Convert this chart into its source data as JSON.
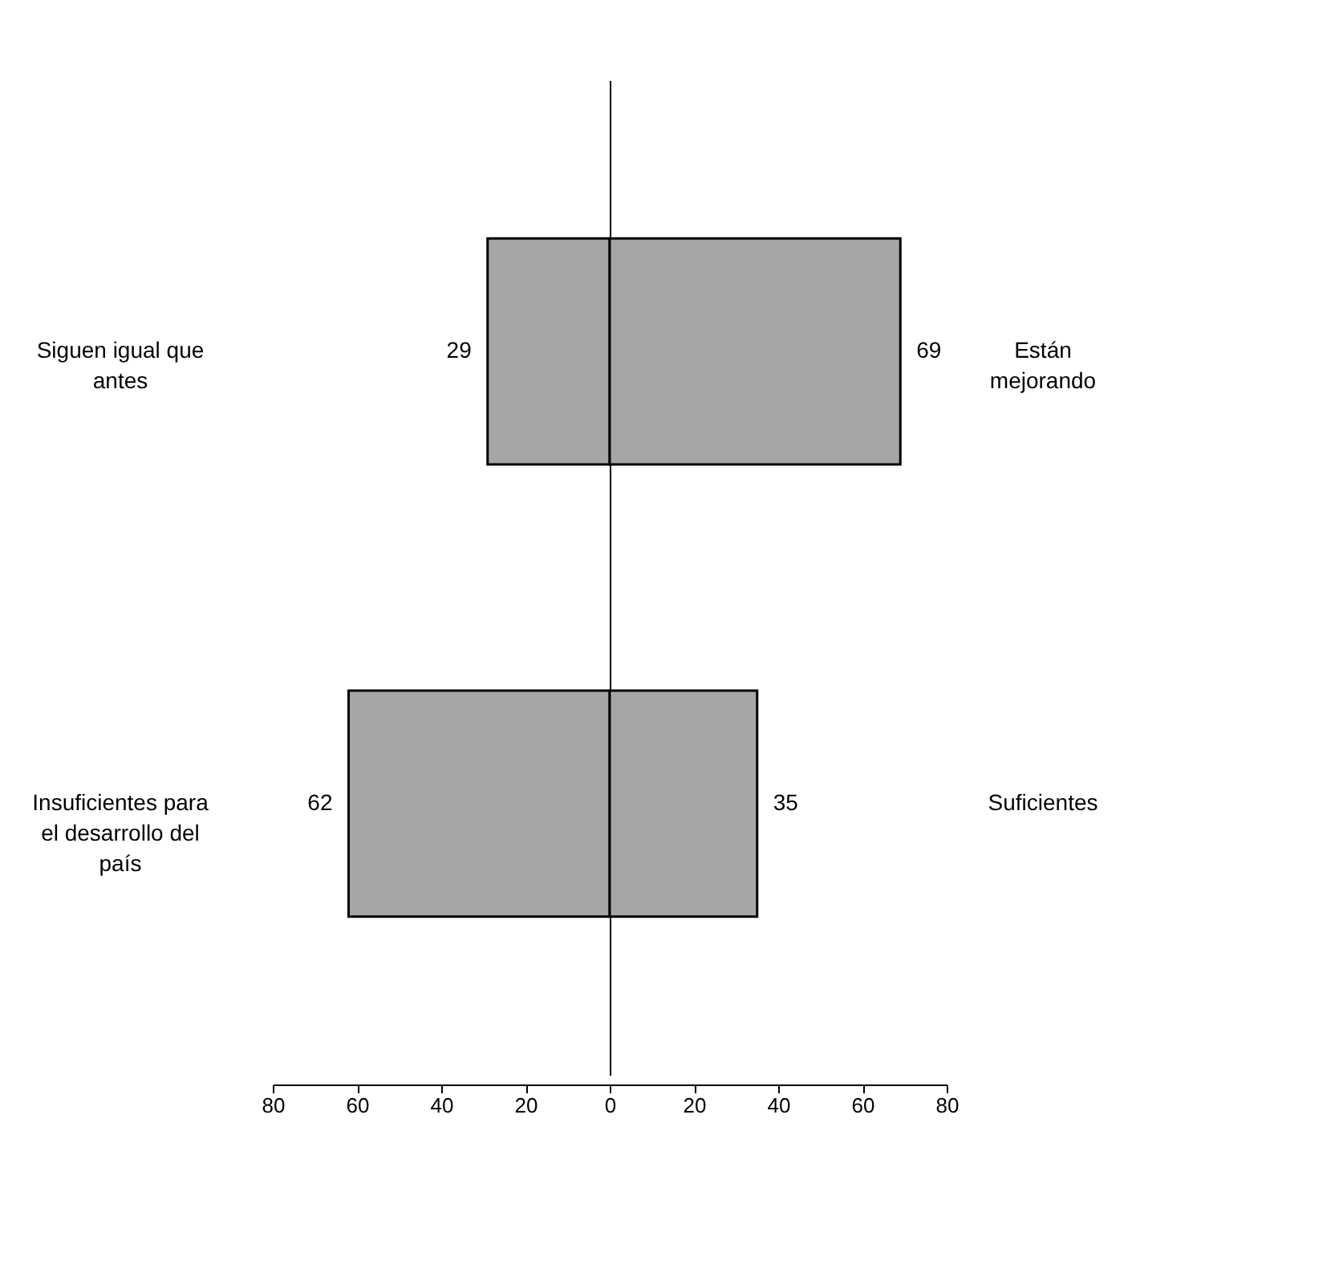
{
  "chart_data": {
    "type": "bar",
    "orientation": "horizontal",
    "categories": [
      "Siguen igual que antes",
      "Insuficientes para el desarrollo del país"
    ],
    "series": [
      {
        "color": "#a6a6a6",
        "values": [
          29,
          62
        ],
        "base": [
          -29,
          -62
        ]
      },
      {
        "color": "#a6a6a6",
        "values": [
          69,
          35
        ]
      }
    ],
    "data_labels": true,
    "annotations": [
      "Están mejorando",
      "Suficientes"
    ],
    "xlim": [
      -80,
      80
    ],
    "xticks": [
      {
        "value": -80,
        "label": "80"
      },
      {
        "value": -60,
        "label": "60"
      },
      {
        "value": -40,
        "label": "40"
      },
      {
        "value": -20,
        "label": "20"
      },
      0,
      20,
      40,
      60,
      80
    ]
  }
}
